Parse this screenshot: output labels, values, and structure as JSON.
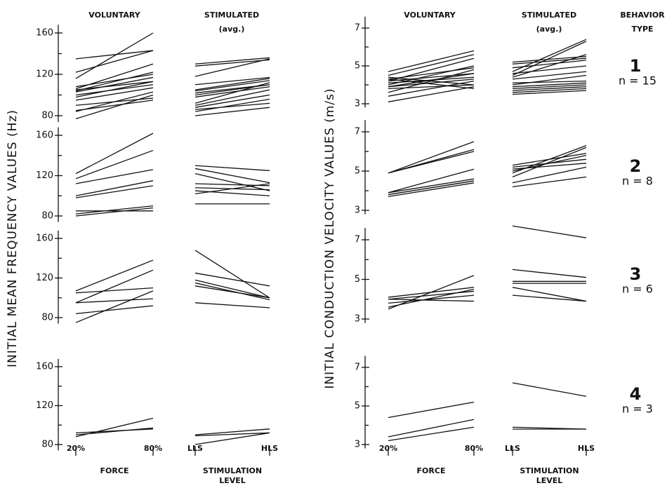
{
  "chart_data": {
    "type": "slope",
    "behavior_header": [
      "BEHAVIOR",
      "TYPE"
    ],
    "behavior_types": [
      {
        "label": "1",
        "n": "n = 15"
      },
      {
        "label": "2",
        "n": "n = 8"
      },
      {
        "label": "3",
        "n": "n = 6"
      },
      {
        "label": "4",
        "n": "n = 3"
      }
    ],
    "charts": [
      {
        "ylabel": "INITIAL MEAN FREQUENCY VALUES (Hz)",
        "ylim": [
          74,
          168
        ],
        "yticks": [
          80,
          120,
          160
        ],
        "minor_yticks": [
          100,
          140
        ],
        "columns": [
          {
            "title": [
              "VOLUNTARY"
            ],
            "categories": [
              "20%",
              "80%"
            ],
            "xlabel": [
              "FORCE"
            ]
          },
          {
            "title": [
              "STIMULATED",
              "(avg.)"
            ],
            "categories": [
              "LLS",
              "HLS"
            ],
            "xlabel": [
              "STIMULATION",
              "LEVEL"
            ]
          }
        ],
        "rows": [
          {
            "panels": [
              {
                "lines": [
                  [
                    135,
                    143
                  ],
                  [
                    116,
                    160
                  ],
                  [
                    122,
                    143
                  ],
                  [
                    106,
                    130
                  ],
                  [
                    104,
                    122
                  ],
                  [
                    103,
                    117
                  ],
                  [
                    105,
                    113
                  ],
                  [
                    98,
                    113
                  ],
                  [
                    90,
                    97
                  ],
                  [
                    84,
                    103
                  ],
                  [
                    85,
                    95
                  ],
                  [
                    77,
                    100
                  ],
                  [
                    108,
                    120
                  ],
                  [
                    95,
                    107
                  ],
                  [
                    100,
                    110
                  ]
                ]
              },
              {
                "lines": [
                  [
                    130,
                    136
                  ],
                  [
                    128,
                    134
                  ],
                  [
                    118,
                    135
                  ],
                  [
                    105,
                    116
                  ],
                  [
                    104,
                    114
                  ],
                  [
                    100,
                    110
                  ],
                  [
                    98,
                    108
                  ],
                  [
                    92,
                    112
                  ],
                  [
                    90,
                    105
                  ],
                  [
                    88,
                    100
                  ],
                  [
                    84,
                    96
                  ],
                  [
                    80,
                    88
                  ],
                  [
                    86,
                    92
                  ],
                  [
                    102,
                    110
                  ],
                  [
                    110,
                    117
                  ]
                ]
              }
            ]
          },
          {
            "panels": [
              {
                "lines": [
                  [
                    122,
                    162
                  ],
                  [
                    117,
                    145
                  ],
                  [
                    112,
                    126
                  ],
                  [
                    100,
                    115
                  ],
                  [
                    98,
                    110
                  ],
                  [
                    85,
                    85
                  ],
                  [
                    82,
                    90
                  ],
                  [
                    80,
                    88
                  ]
                ]
              },
              {
                "lines": [
                  [
                    130,
                    125
                  ],
                  [
                    127,
                    113
                  ],
                  [
                    122,
                    105
                  ],
                  [
                    112,
                    110
                  ],
                  [
                    108,
                    106
                  ],
                  [
                    105,
                    100
                  ],
                  [
                    102,
                    112
                  ],
                  [
                    92,
                    92
                  ]
                ]
              }
            ]
          },
          {
            "panels": [
              {
                "lines": [
                  [
                    105,
                    110
                  ],
                  [
                    107,
                    138
                  ],
                  [
                    95,
                    128
                  ],
                  [
                    84,
                    92
                  ],
                  [
                    95,
                    99
                  ],
                  [
                    75,
                    107
                  ]
                ]
              },
              {
                "lines": [
                  [
                    148,
                    100
                  ],
                  [
                    125,
                    112
                  ],
                  [
                    118,
                    100
                  ],
                  [
                    115,
                    98
                  ],
                  [
                    112,
                    100
                  ],
                  [
                    95,
                    90
                  ]
                ]
              }
            ]
          },
          {
            "panels": [
              {
                "lines": [
                  [
                    92,
                    96
                  ],
                  [
                    90,
                    97
                  ],
                  [
                    88,
                    107
                  ]
                ]
              },
              {
                "lines": [
                  [
                    90,
                    96
                  ],
                  [
                    80,
                    92
                  ],
                  [
                    89,
                    92
                  ]
                ]
              }
            ]
          }
        ]
      },
      {
        "ylabel": "INITIAL CONDUCTION VELOCITY VALUES (m/s)",
        "ylim": [
          2.8,
          7.6
        ],
        "yticks": [
          3,
          5,
          7
        ],
        "minor_yticks": [
          4,
          6
        ],
        "columns": [
          {
            "title": [
              "VOLUNTARY"
            ],
            "categories": [
              "20%",
              "80%"
            ],
            "xlabel": [
              "FORCE"
            ]
          },
          {
            "title": [
              "STIMULATED",
              "(avg.)"
            ],
            "categories": [
              "LLS",
              "HLS"
            ],
            "xlabel": [
              "STIMULATION",
              "LEVEL"
            ]
          }
        ],
        "rows": [
          {
            "panels": [
              {
                "lines": [
                  [
                    4.7,
                    5.8
                  ],
                  [
                    4.5,
                    5.6
                  ],
                  [
                    4.3,
                    4.9
                  ],
                  [
                    4.2,
                    4.6
                  ],
                  [
                    4.1,
                    4.4
                  ],
                  [
                    4.0,
                    5.0
                  ],
                  [
                    3.9,
                    4.3
                  ],
                  [
                    3.8,
                    4.0
                  ],
                  [
                    3.6,
                    4.8
                  ],
                  [
                    3.4,
                    4.2
                  ],
                  [
                    3.1,
                    3.9
                  ],
                  [
                    4.4,
                    4.0
                  ],
                  [
                    4.2,
                    5.4
                  ],
                  [
                    3.9,
                    4.6
                  ],
                  [
                    4.3,
                    3.8
                  ]
                ]
              },
              {
                "lines": [
                  [
                    5.2,
                    5.5
                  ],
                  [
                    5.1,
                    5.4
                  ],
                  [
                    4.7,
                    6.4
                  ],
                  [
                    4.5,
                    6.3
                  ],
                  [
                    4.9,
                    5.3
                  ],
                  [
                    4.6,
                    5.0
                  ],
                  [
                    4.3,
                    4.7
                  ],
                  [
                    4.1,
                    4.2
                  ],
                  [
                    3.9,
                    4.1
                  ],
                  [
                    3.8,
                    4.0
                  ],
                  [
                    3.7,
                    3.9
                  ],
                  [
                    3.6,
                    3.8
                  ],
                  [
                    3.5,
                    3.7
                  ],
                  [
                    4.4,
                    5.6
                  ],
                  [
                    4.0,
                    4.5
                  ]
                ]
              }
            ]
          },
          {
            "panels": [
              {
                "lines": [
                  [
                    4.9,
                    6.5
                  ],
                  [
                    4.9,
                    6.1
                  ],
                  [
                    3.9,
                    5.1
                  ],
                  [
                    3.8,
                    4.5
                  ],
                  [
                    3.7,
                    4.4
                  ],
                  [
                    3.9,
                    4.6
                  ],
                  [
                    4.9,
                    6.0
                  ],
                  [
                    3.8,
                    4.5
                  ]
                ]
              },
              {
                "lines": [
                  [
                    5.3,
                    5.9
                  ],
                  [
                    5.2,
                    5.6
                  ],
                  [
                    5.1,
                    5.4
                  ],
                  [
                    4.9,
                    6.3
                  ],
                  [
                    4.7,
                    6.2
                  ],
                  [
                    4.4,
                    5.2
                  ],
                  [
                    4.2,
                    4.7
                  ],
                  [
                    5.0,
                    5.8
                  ]
                ]
              }
            ]
          },
          {
            "panels": [
              {
                "lines": [
                  [
                    4.1,
                    4.6
                  ],
                  [
                    4.0,
                    4.4
                  ],
                  [
                    3.6,
                    4.5
                  ],
                  [
                    3.5,
                    5.2
                  ],
                  [
                    4.0,
                    3.9
                  ],
                  [
                    3.8,
                    4.2
                  ]
                ]
              },
              {
                "lines": [
                  [
                    7.7,
                    7.1
                  ],
                  [
                    5.5,
                    5.1
                  ],
                  [
                    4.9,
                    4.9
                  ],
                  [
                    4.8,
                    4.8
                  ],
                  [
                    4.6,
                    3.9
                  ],
                  [
                    4.2,
                    3.9
                  ]
                ]
              }
            ]
          },
          {
            "panels": [
              {
                "lines": [
                  [
                    4.4,
                    5.2
                  ],
                  [
                    3.4,
                    4.3
                  ],
                  [
                    3.2,
                    3.9
                  ]
                ]
              },
              {
                "lines": [
                  [
                    6.2,
                    5.5
                  ],
                  [
                    3.9,
                    3.8
                  ],
                  [
                    3.8,
                    3.8
                  ]
                ]
              }
            ]
          }
        ]
      }
    ]
  }
}
